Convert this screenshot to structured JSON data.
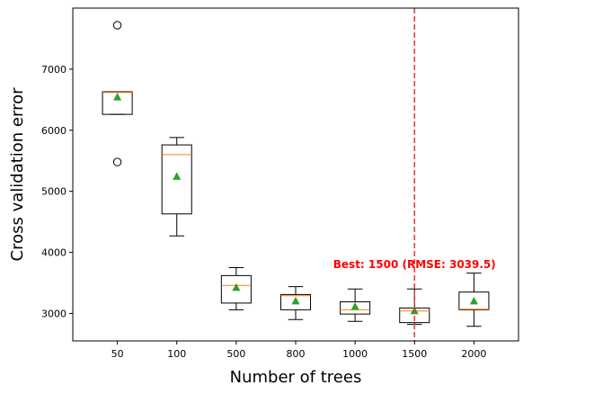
{
  "chart_data": {
    "type": "box",
    "title": "",
    "xlabel": "Number of trees",
    "ylabel": "Cross validation error",
    "categories": [
      "50",
      "100",
      "500",
      "800",
      "1000",
      "1500",
      "2000"
    ],
    "ylim": [
      2550,
      8000
    ],
    "yticks": [
      3000,
      4000,
      5000,
      6000,
      7000
    ],
    "grid": false,
    "boxes": [
      {
        "category": "50",
        "whisker_low": 6260,
        "q1": 6260,
        "median": 6620,
        "q3": 6630,
        "whisker_high": 6630,
        "mean": 6540,
        "outliers": [
          7720,
          5480
        ]
      },
      {
        "category": "100",
        "whisker_low": 4270,
        "q1": 4630,
        "median": 5600,
        "q3": 5760,
        "whisker_high": 5880,
        "mean": 5240,
        "outliers": []
      },
      {
        "category": "500",
        "whisker_low": 3060,
        "q1": 3170,
        "median": 3460,
        "q3": 3620,
        "whisker_high": 3750,
        "mean": 3420,
        "outliers": []
      },
      {
        "category": "800",
        "whisker_low": 2900,
        "q1": 3060,
        "median": 3290,
        "q3": 3310,
        "whisker_high": 3440,
        "mean": 3200,
        "outliers": []
      },
      {
        "category": "1000",
        "whisker_low": 2870,
        "q1": 2990,
        "median": 3060,
        "q3": 3190,
        "whisker_high": 3400,
        "mean": 3110,
        "outliers": []
      },
      {
        "category": "1500",
        "whisker_low": 2820,
        "q1": 2850,
        "median": 3040,
        "q3": 3090,
        "whisker_high": 3400,
        "mean": 3040,
        "outliers": []
      },
      {
        "category": "2000",
        "whisker_low": 2790,
        "q1": 3060,
        "median": 3070,
        "q3": 3350,
        "whisker_high": 3660,
        "mean": 3200,
        "outliers": []
      }
    ],
    "reference_line": {
      "category": "1500",
      "style": "dashed",
      "color": "#e8403a"
    },
    "annotation": {
      "text": "Best: 1500 (RMSE: 3039.5)",
      "color": "#ff0000",
      "anchor_category": "1500",
      "y": 3740
    },
    "colors": {
      "box": "#000000",
      "median": "#ff7f0e",
      "mean": "#2ca02c",
      "outlier": "#000000"
    }
  }
}
